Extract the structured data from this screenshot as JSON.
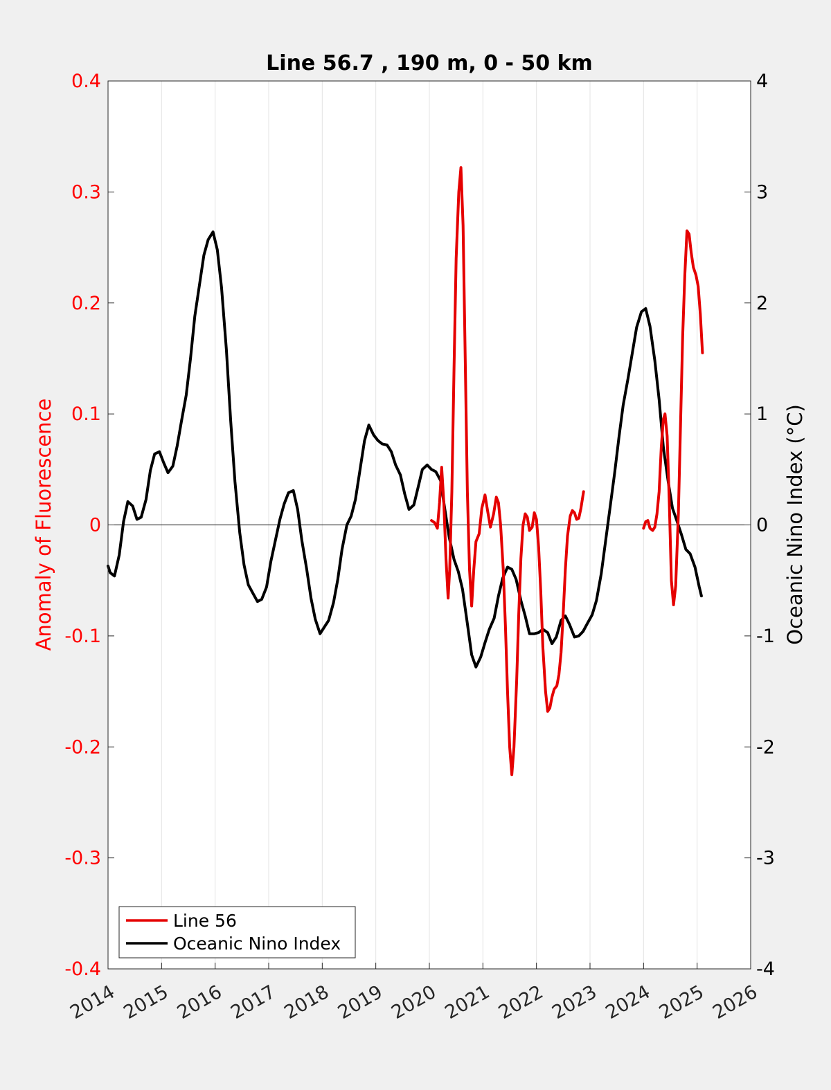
{
  "chart_data": {
    "type": "line",
    "title": "Line 56.7 , 190 m, 0 - 50 km",
    "ylabel_left": "Anomaly of Fluorescence",
    "ylabel_right": "Oceanic Nino Index (°C)",
    "xlim": [
      2014,
      2026
    ],
    "ylim_left": [
      -0.4,
      0.4
    ],
    "ylim_right": [
      -4,
      4
    ],
    "x_ticks": [
      2014,
      2015,
      2016,
      2017,
      2018,
      2019,
      2020,
      2021,
      2022,
      2023,
      2024,
      2025,
      2026
    ],
    "y_ticks_left": [
      "-0.4",
      "-0.3",
      "-0.2",
      "-0.1",
      "0",
      "0.1",
      "0.2",
      "0.3",
      "0.4"
    ],
    "y_ticks_right": [
      "-4",
      "-3",
      "-2",
      "-1",
      "0",
      "1",
      "2",
      "3",
      "4"
    ],
    "grid": "vertical",
    "legend_position": "bottom-left",
    "colors": {
      "left_axis": "#ff0000",
      "right_axis": "#000000",
      "background": "#f0f0f0",
      "plot_bg": "#ffffff",
      "grid": "#e3e3e3"
    },
    "series": [
      {
        "name": "Line 56",
        "axis": "left",
        "color": "#e50000",
        "segments": [
          [
            [
              2020.04,
              0.004
            ],
            [
              2020.1,
              0.002
            ],
            [
              2020.15,
              -0.003
            ],
            [
              2020.19,
              0.02
            ],
            [
              2020.23,
              0.052
            ],
            [
              2020.27,
              0.02
            ],
            [
              2020.31,
              -0.03
            ],
            [
              2020.35,
              -0.066
            ],
            [
              2020.38,
              -0.04
            ],
            [
              2020.42,
              0.03
            ],
            [
              2020.46,
              0.14
            ],
            [
              2020.5,
              0.24
            ],
            [
              2020.55,
              0.3
            ],
            [
              2020.59,
              0.322
            ],
            [
              2020.63,
              0.27
            ],
            [
              2020.67,
              0.15
            ],
            [
              2020.71,
              0.03
            ],
            [
              2020.75,
              -0.04
            ],
            [
              2020.79,
              -0.073
            ],
            [
              2020.83,
              -0.04
            ],
            [
              2020.87,
              -0.015
            ],
            [
              2020.93,
              -0.008
            ],
            [
              2020.98,
              0.015
            ],
            [
              2021.04,
              0.027
            ],
            [
              2021.09,
              0.012
            ],
            [
              2021.14,
              -0.002
            ],
            [
              2021.2,
              0.01
            ],
            [
              2021.25,
              0.025
            ],
            [
              2021.29,
              0.02
            ],
            [
              2021.33,
              0.0
            ],
            [
              2021.38,
              -0.04
            ],
            [
              2021.42,
              -0.09
            ],
            [
              2021.46,
              -0.15
            ],
            [
              2021.5,
              -0.2
            ],
            [
              2021.54,
              -0.225
            ],
            [
              2021.58,
              -0.2
            ],
            [
              2021.63,
              -0.14
            ],
            [
              2021.67,
              -0.08
            ],
            [
              2021.71,
              -0.03
            ],
            [
              2021.75,
              0.0
            ],
            [
              2021.79,
              0.01
            ],
            [
              2021.83,
              0.007
            ],
            [
              2021.87,
              -0.005
            ],
            [
              2021.92,
              -0.002
            ],
            [
              2021.96,
              0.011
            ],
            [
              2022.0,
              0.005
            ],
            [
              2022.04,
              -0.02
            ],
            [
              2022.08,
              -0.06
            ],
            [
              2022.12,
              -0.11
            ],
            [
              2022.17,
              -0.15
            ],
            [
              2022.21,
              -0.168
            ],
            [
              2022.25,
              -0.165
            ],
            [
              2022.29,
              -0.155
            ],
            [
              2022.33,
              -0.148
            ],
            [
              2022.38,
              -0.145
            ],
            [
              2022.42,
              -0.135
            ],
            [
              2022.46,
              -0.115
            ],
            [
              2022.5,
              -0.08
            ],
            [
              2022.54,
              -0.04
            ],
            [
              2022.58,
              -0.01
            ],
            [
              2022.63,
              0.008
            ],
            [
              2022.67,
              0.013
            ],
            [
              2022.71,
              0.011
            ],
            [
              2022.75,
              0.005
            ],
            [
              2022.79,
              0.006
            ],
            [
              2022.83,
              0.015
            ],
            [
              2022.88,
              0.03
            ]
          ],
          [
            [
              2024.0,
              -0.003
            ],
            [
              2024.04,
              0.003
            ],
            [
              2024.08,
              0.004
            ],
            [
              2024.12,
              -0.003
            ],
            [
              2024.17,
              -0.005
            ],
            [
              2024.21,
              -0.002
            ],
            [
              2024.25,
              0.01
            ],
            [
              2024.29,
              0.03
            ],
            [
              2024.33,
              0.07
            ],
            [
              2024.37,
              0.095
            ],
            [
              2024.4,
              0.1
            ],
            [
              2024.44,
              0.08
            ],
            [
              2024.48,
              0.02
            ],
            [
              2024.52,
              -0.05
            ],
            [
              2024.56,
              -0.072
            ],
            [
              2024.6,
              -0.055
            ],
            [
              2024.65,
              0.01
            ],
            [
              2024.69,
              0.09
            ],
            [
              2024.73,
              0.17
            ],
            [
              2024.77,
              0.225
            ],
            [
              2024.81,
              0.265
            ],
            [
              2024.85,
              0.262
            ],
            [
              2024.89,
              0.245
            ],
            [
              2024.93,
              0.232
            ],
            [
              2024.98,
              0.225
            ],
            [
              2025.02,
              0.215
            ],
            [
              2025.06,
              0.19
            ],
            [
              2025.1,
              0.155
            ]
          ]
        ]
      },
      {
        "name": "Oceanic Nino Index",
        "axis": "right",
        "color": "#000000",
        "segments": [
          [
            [
              2014.0,
              -0.37
            ],
            [
              2014.04,
              -0.43
            ],
            [
              2014.12,
              -0.46
            ],
            [
              2014.21,
              -0.27
            ],
            [
              2014.29,
              0.03
            ],
            [
              2014.37,
              0.21
            ],
            [
              2014.46,
              0.17
            ],
            [
              2014.54,
              0.05
            ],
            [
              2014.62,
              0.07
            ],
            [
              2014.71,
              0.23
            ],
            [
              2014.79,
              0.49
            ],
            [
              2014.87,
              0.64
            ],
            [
              2014.96,
              0.66
            ],
            [
              2015.04,
              0.56
            ],
            [
              2015.12,
              0.47
            ],
            [
              2015.21,
              0.53
            ],
            [
              2015.29,
              0.71
            ],
            [
              2015.37,
              0.93
            ],
            [
              2015.46,
              1.17
            ],
            [
              2015.54,
              1.5
            ],
            [
              2015.62,
              1.88
            ],
            [
              2015.71,
              2.17
            ],
            [
              2015.79,
              2.43
            ],
            [
              2015.87,
              2.57
            ],
            [
              2015.96,
              2.64
            ],
            [
              2016.04,
              2.48
            ],
            [
              2016.12,
              2.14
            ],
            [
              2016.21,
              1.58
            ],
            [
              2016.29,
              0.94
            ],
            [
              2016.37,
              0.39
            ],
            [
              2016.46,
              -0.07
            ],
            [
              2016.54,
              -0.36
            ],
            [
              2016.62,
              -0.54
            ],
            [
              2016.71,
              -0.62
            ],
            [
              2016.79,
              -0.69
            ],
            [
              2016.87,
              -0.67
            ],
            [
              2016.96,
              -0.56
            ],
            [
              2017.04,
              -0.33
            ],
            [
              2017.12,
              -0.15
            ],
            [
              2017.21,
              0.05
            ],
            [
              2017.29,
              0.19
            ],
            [
              2017.37,
              0.29
            ],
            [
              2017.46,
              0.31
            ],
            [
              2017.54,
              0.14
            ],
            [
              2017.62,
              -0.14
            ],
            [
              2017.71,
              -0.4
            ],
            [
              2017.79,
              -0.66
            ],
            [
              2017.87,
              -0.85
            ],
            [
              2017.96,
              -0.98
            ],
            [
              2018.04,
              -0.92
            ],
            [
              2018.12,
              -0.86
            ],
            [
              2018.21,
              -0.7
            ],
            [
              2018.29,
              -0.49
            ],
            [
              2018.37,
              -0.22
            ],
            [
              2018.46,
              0.0
            ],
            [
              2018.54,
              0.08
            ],
            [
              2018.62,
              0.23
            ],
            [
              2018.71,
              0.51
            ],
            [
              2018.79,
              0.76
            ],
            [
              2018.87,
              0.9
            ],
            [
              2018.96,
              0.81
            ],
            [
              2019.04,
              0.76
            ],
            [
              2019.12,
              0.73
            ],
            [
              2019.21,
              0.72
            ],
            [
              2019.29,
              0.66
            ],
            [
              2019.37,
              0.54
            ],
            [
              2019.46,
              0.45
            ],
            [
              2019.54,
              0.28
            ],
            [
              2019.62,
              0.14
            ],
            [
              2019.71,
              0.18
            ],
            [
              2019.79,
              0.34
            ],
            [
              2019.87,
              0.5
            ],
            [
              2019.96,
              0.54
            ],
            [
              2020.04,
              0.5
            ],
            [
              2020.12,
              0.48
            ],
            [
              2020.21,
              0.4
            ],
            [
              2020.29,
              0.14
            ],
            [
              2020.37,
              -0.11
            ],
            [
              2020.46,
              -0.31
            ],
            [
              2020.54,
              -0.42
            ],
            [
              2020.62,
              -0.58
            ],
            [
              2020.71,
              -0.89
            ],
            [
              2020.79,
              -1.17
            ],
            [
              2020.87,
              -1.28
            ],
            [
              2020.96,
              -1.19
            ],
            [
              2021.04,
              -1.06
            ],
            [
              2021.12,
              -0.94
            ],
            [
              2021.21,
              -0.84
            ],
            [
              2021.29,
              -0.64
            ],
            [
              2021.37,
              -0.48
            ],
            [
              2021.46,
              -0.38
            ],
            [
              2021.54,
              -0.4
            ],
            [
              2021.62,
              -0.49
            ],
            [
              2021.71,
              -0.68
            ],
            [
              2021.79,
              -0.82
            ],
            [
              2021.87,
              -0.98
            ],
            [
              2021.96,
              -0.98
            ],
            [
              2022.04,
              -0.97
            ],
            [
              2022.12,
              -0.94
            ],
            [
              2022.21,
              -0.97
            ],
            [
              2022.29,
              -1.07
            ],
            [
              2022.37,
              -1.01
            ],
            [
              2022.46,
              -0.86
            ],
            [
              2022.54,
              -0.82
            ],
            [
              2022.62,
              -0.9
            ],
            [
              2022.71,
              -1.01
            ],
            [
              2022.79,
              -1.0
            ],
            [
              2022.87,
              -0.96
            ],
            [
              2022.96,
              -0.88
            ],
            [
              2023.04,
              -0.81
            ],
            [
              2023.12,
              -0.68
            ],
            [
              2023.21,
              -0.44
            ],
            [
              2023.29,
              -0.15
            ],
            [
              2023.37,
              0.14
            ],
            [
              2023.46,
              0.47
            ],
            [
              2023.54,
              0.79
            ],
            [
              2023.62,
              1.08
            ],
            [
              2023.71,
              1.32
            ],
            [
              2023.79,
              1.55
            ],
            [
              2023.87,
              1.78
            ],
            [
              2023.96,
              1.92
            ],
            [
              2024.04,
              1.95
            ],
            [
              2024.12,
              1.79
            ],
            [
              2024.21,
              1.48
            ],
            [
              2024.29,
              1.13
            ],
            [
              2024.37,
              0.7
            ],
            [
              2024.46,
              0.39
            ],
            [
              2024.54,
              0.15
            ],
            [
              2024.62,
              0.04
            ],
            [
              2024.71,
              -0.09
            ],
            [
              2024.79,
              -0.22
            ],
            [
              2024.87,
              -0.26
            ],
            [
              2024.96,
              -0.38
            ],
            [
              2025.04,
              -0.56
            ],
            [
              2025.08,
              -0.64
            ]
          ]
        ]
      }
    ]
  }
}
